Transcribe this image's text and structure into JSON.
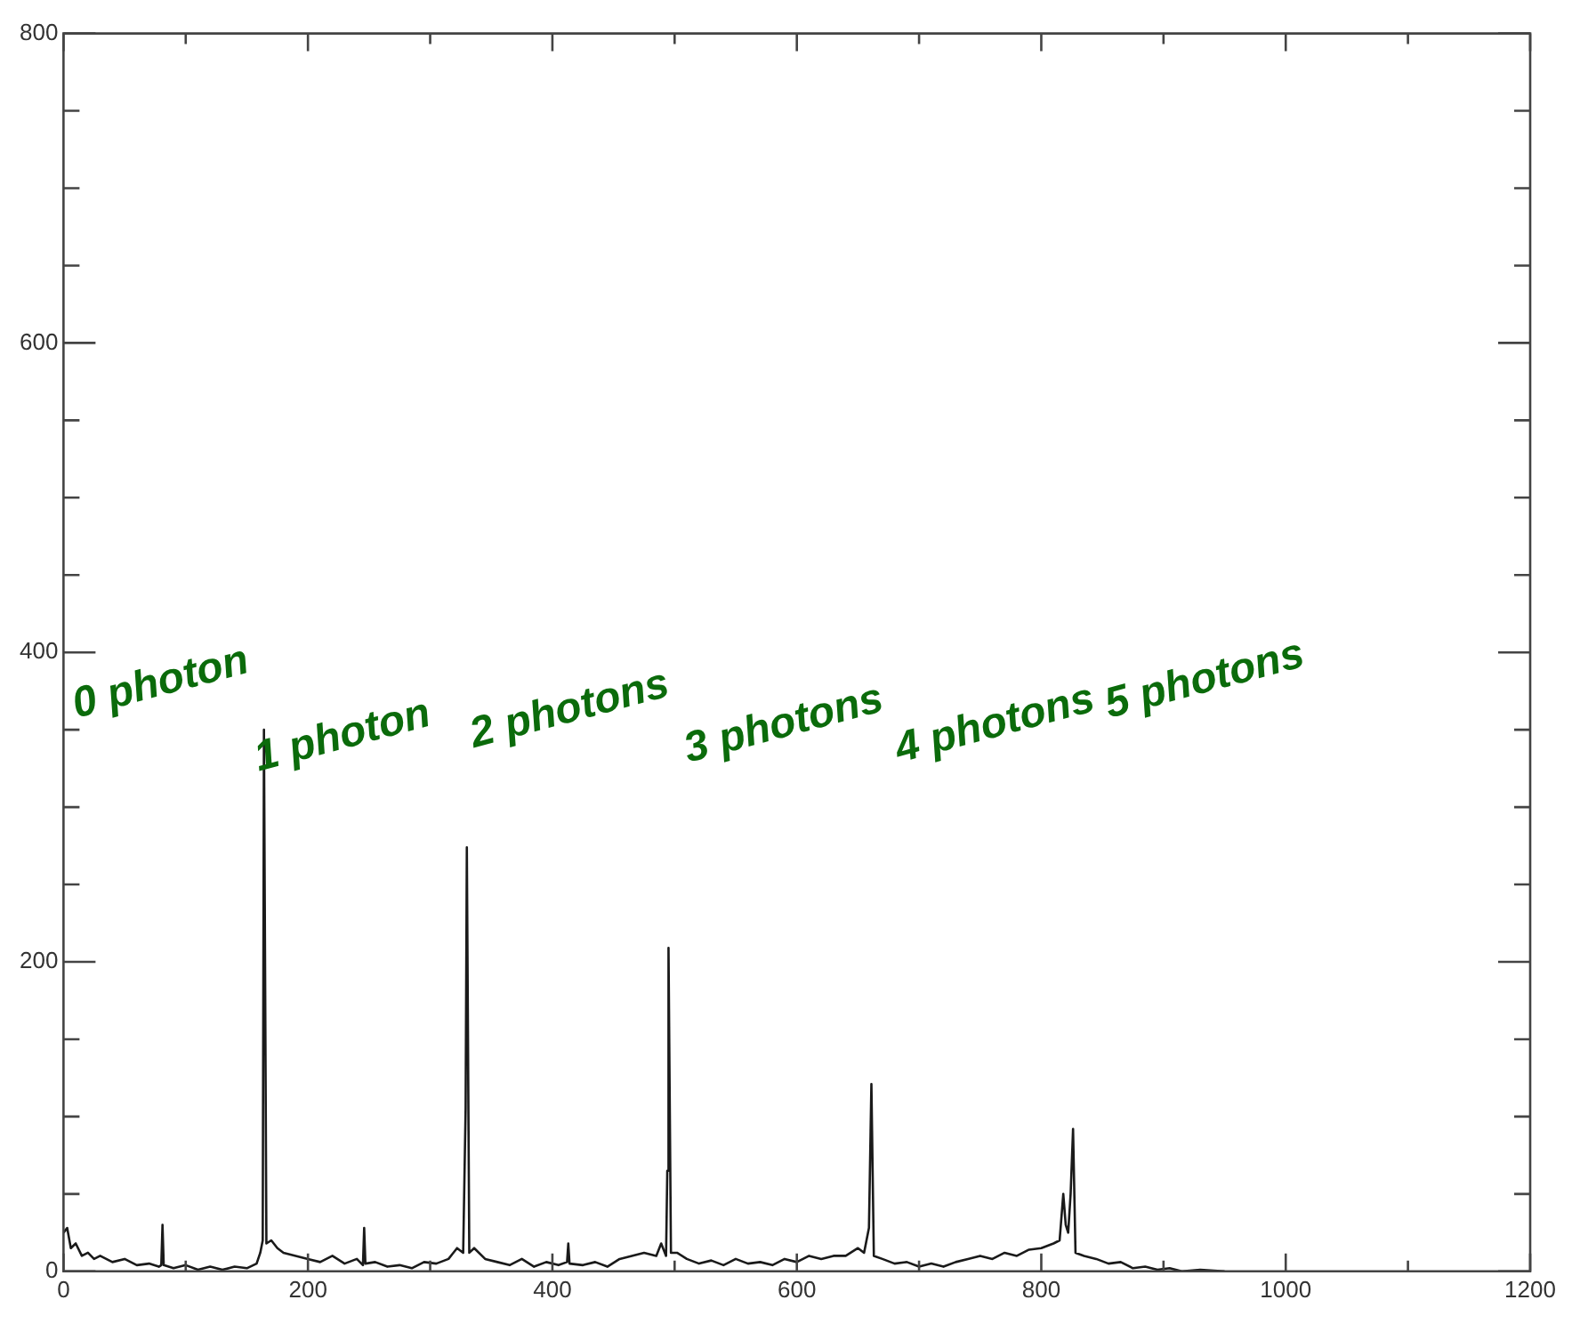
{
  "chart_data": {
    "type": "line",
    "xlim": [
      0,
      1200
    ],
    "ylim": [
      0,
      800
    ],
    "xticks": [
      0,
      {
        "value": 100,
        "label": null
      },
      200,
      {
        "value": 300,
        "label": null
      },
      400,
      {
        "value": 500,
        "label": null
      },
      600,
      {
        "value": 700,
        "label": null
      },
      800,
      {
        "value": 900,
        "label": null
      },
      1000,
      {
        "value": 1100,
        "label": null
      },
      1200
    ],
    "yticks": [
      0,
      {
        "value": 50,
        "label": null
      },
      {
        "value": 100,
        "label": null
      },
      {
        "value": 150,
        "label": null
      },
      200,
      {
        "value": 250,
        "label": null
      },
      {
        "value": 300,
        "label": null
      },
      {
        "value": 350,
        "label": null
      },
      400,
      {
        "value": 450,
        "label": null
      },
      {
        "value": 500,
        "label": null
      },
      {
        "value": 550,
        "label": null
      },
      600,
      {
        "value": 650,
        "label": null
      },
      {
        "value": 700,
        "label": null
      },
      {
        "value": 750,
        "label": null
      },
      800
    ],
    "grid": false,
    "legend": false,
    "marker": "none",
    "line_style": "solid",
    "annotations": [
      "0 photon",
      "1 photon",
      "2 photons",
      "3 photons",
      "4 photons",
      "5 photons"
    ],
    "series": [
      {
        "color": "#1a1a1a",
        "x": [
          0,
          3,
          6,
          10,
          15,
          20,
          25,
          30,
          40,
          50,
          60,
          70,
          78,
          80,
          81,
          82,
          90,
          100,
          110,
          120,
          130,
          140,
          150,
          158,
          161,
          163,
          164,
          166,
          170,
          175,
          180,
          190,
          200,
          210,
          220,
          230,
          240,
          245,
          246,
          247,
          255,
          265,
          275,
          285,
          295,
          305,
          315,
          322,
          327,
          329,
          330,
          332,
          336,
          345,
          355,
          365,
          375,
          385,
          395,
          405,
          412,
          413,
          414,
          425,
          435,
          445,
          455,
          465,
          475,
          485,
          489,
          493,
          494,
          495,
          497,
          502,
          510,
          520,
          530,
          540,
          550,
          560,
          570,
          580,
          590,
          600,
          610,
          620,
          630,
          640,
          650,
          655,
          659,
          661,
          663,
          670,
          680,
          690,
          700,
          710,
          720,
          730,
          740,
          750,
          760,
          770,
          780,
          790,
          800,
          810,
          815,
          818,
          820,
          822,
          824,
          826,
          828,
          835,
          845,
          855,
          865,
          875,
          885,
          895,
          905,
          915,
          930,
          950
        ],
        "values": [
          25,
          28,
          15,
          18,
          10,
          12,
          8,
          10,
          6,
          8,
          4,
          5,
          3,
          4,
          30,
          4,
          2,
          4,
          1,
          3,
          1,
          3,
          2,
          5,
          12,
          20,
          350,
          18,
          20,
          15,
          12,
          10,
          8,
          6,
          10,
          5,
          8,
          4,
          28,
          5,
          6,
          3,
          4,
          2,
          6,
          5,
          8,
          15,
          12,
          105,
          274,
          12,
          15,
          8,
          6,
          4,
          8,
          3,
          6,
          4,
          6,
          18,
          5,
          4,
          6,
          3,
          8,
          10,
          12,
          10,
          18,
          10,
          65,
          209,
          12,
          12,
          8,
          5,
          7,
          4,
          8,
          5,
          6,
          4,
          8,
          6,
          10,
          8,
          10,
          10,
          15,
          12,
          28,
          121,
          10,
          8,
          5,
          6,
          3,
          5,
          3,
          6,
          8,
          10,
          8,
          12,
          10,
          14,
          15,
          18,
          20,
          50,
          30,
          25,
          50,
          92,
          12,
          10,
          8,
          5,
          6,
          2,
          3,
          1,
          2,
          0,
          1,
          0
        ]
      }
    ]
  }
}
